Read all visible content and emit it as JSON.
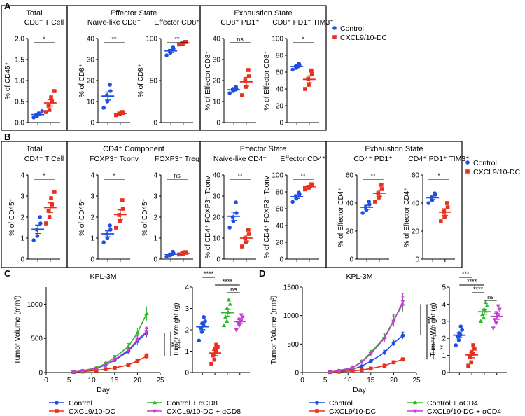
{
  "colors": {
    "control": "#1f4fe0",
    "cxcl": "#e8301e",
    "ctrl_cd": "#2bb82b",
    "cxcl_cd": "#c43dd6",
    "panel_border": "#000000"
  },
  "legend_AB": [
    {
      "label": "Control",
      "marker": "circle",
      "color": "#1f4fe0"
    },
    {
      "label": "CXCL9/10-DC",
      "marker": "square",
      "color": "#e8301e"
    }
  ],
  "chart_data": [
    {
      "id": "A1",
      "panel_letter": "A",
      "type": "scatter",
      "group": "Total",
      "title": "CD8⁺ T Cell",
      "ylabel": "% of CD45⁺",
      "ylim": [
        0,
        2.0
      ],
      "yticks": [
        0.0,
        0.5,
        1.0,
        1.5,
        2.0
      ],
      "sig": "*",
      "series": [
        {
          "name": "Control",
          "values": [
            0.12,
            0.15,
            0.18,
            0.2,
            0.22,
            0.27
          ]
        },
        {
          "name": "CXCL9/10-DC",
          "values": [
            0.25,
            0.3,
            0.4,
            0.5,
            0.6,
            0.75
          ]
        }
      ]
    },
    {
      "id": "A2",
      "type": "scatter",
      "group": "Effector State",
      "title": "Naïve-like CD8⁺",
      "ylabel": "% of CD8⁺",
      "ylim": [
        0,
        40
      ],
      "yticks": [
        0,
        10,
        20,
        30,
        40
      ],
      "sig": "**",
      "series": [
        {
          "name": "Control",
          "values": [
            7,
            10,
            13,
            15,
            18
          ]
        },
        {
          "name": "CXCL9/10-DC",
          "values": [
            3.5,
            4,
            4.3,
            4.6,
            5
          ]
        }
      ]
    },
    {
      "id": "A3",
      "type": "scatter",
      "title": "Effector CD8⁺",
      "ylabel": "% of CD8⁺",
      "ylim": [
        0,
        100
      ],
      "yticks": [
        0,
        50,
        100
      ],
      "sig": "**",
      "series": [
        {
          "name": "Control",
          "values": [
            80,
            83,
            85,
            88,
            90
          ]
        },
        {
          "name": "CXCL9/10-DC",
          "values": [
            93,
            94,
            95,
            96,
            96
          ]
        }
      ]
    },
    {
      "id": "A4",
      "type": "scatter",
      "group": "Exhaustion State",
      "title": "CD8⁺ PD1⁺",
      "ylabel": "% of Effector CD8⁺",
      "ylim": [
        0,
        40
      ],
      "yticks": [
        0,
        10,
        20,
        30,
        40
      ],
      "sig": "ns",
      "series": [
        {
          "name": "Control",
          "values": [
            14,
            15,
            16,
            16,
            17
          ]
        },
        {
          "name": "CXCL9/10-DC",
          "values": [
            13,
            17,
            20,
            22,
            25
          ]
        }
      ]
    },
    {
      "id": "A5",
      "type": "scatter",
      "title": "CD8⁺ PD1⁺ TIM3⁺",
      "ylabel": "% of Effector CD8⁺",
      "ylim": [
        0,
        100
      ],
      "yticks": [
        0,
        20,
        40,
        60,
        80,
        100
      ],
      "sig": "*",
      "series": [
        {
          "name": "Control",
          "values": [
            63,
            65,
            67,
            68,
            70
          ]
        },
        {
          "name": "CXCL9/10-DC",
          "values": [
            40,
            45,
            52,
            58,
            62
          ]
        }
      ]
    },
    {
      "id": "B1",
      "panel_letter": "B",
      "type": "scatter",
      "group": "Total",
      "title": "CD4⁺ T Cell",
      "ylabel": "% of CD45⁺",
      "ylim": [
        0,
        4
      ],
      "yticks": [
        0,
        1,
        2,
        3,
        4
      ],
      "sig": "*",
      "series": [
        {
          "name": "Control",
          "values": [
            0.9,
            1.1,
            1.4,
            1.7,
            2.0
          ]
        },
        {
          "name": "CXCL9/10-DC",
          "values": [
            1.7,
            2.0,
            2.3,
            2.6,
            2.9,
            3.2
          ]
        }
      ]
    },
    {
      "id": "B2",
      "type": "scatter",
      "group": "CD4⁺ Component",
      "title": "FOXP3⁻ Tconv",
      "ylabel": "% of CD45⁺",
      "ylim": [
        0,
        4
      ],
      "yticks": [
        0,
        1,
        2,
        3,
        4
      ],
      "sig": "*",
      "series": [
        {
          "name": "Control",
          "values": [
            0.8,
            1.0,
            1.2,
            1.4,
            1.6
          ]
        },
        {
          "name": "CXCL9/10-DC",
          "values": [
            1.5,
            1.8,
            2.1,
            2.4,
            2.8
          ]
        }
      ]
    },
    {
      "id": "B3",
      "type": "scatter",
      "title": "FOXP3⁺ Treg",
      "ylabel": "% of CD45⁺",
      "ylim": [
        0,
        4
      ],
      "yticks": [
        0,
        1,
        2,
        3,
        4
      ],
      "sig": "ns",
      "series": [
        {
          "name": "Control",
          "values": [
            0.12,
            0.18,
            0.22,
            0.28,
            0.35
          ]
        },
        {
          "name": "CXCL9/10-DC",
          "values": [
            0.22,
            0.25,
            0.28,
            0.3,
            0.33
          ]
        }
      ]
    },
    {
      "id": "B4",
      "type": "scatter",
      "group": "Effector State",
      "title": "Naïve-like CD4⁺",
      "ylabel": "% of CD4⁺ FOXP3⁻ Tconv",
      "ylim": [
        0,
        40
      ],
      "yticks": [
        0,
        10,
        20,
        30,
        40
      ],
      "sig": "**",
      "series": [
        {
          "name": "Control",
          "values": [
            15,
            18,
            20,
            22,
            27
          ]
        },
        {
          "name": "CXCL9/10-DC",
          "values": [
            6,
            8,
            10,
            12,
            14
          ]
        }
      ]
    },
    {
      "id": "B5",
      "type": "scatter",
      "title": "Effector CD4⁺",
      "ylabel": "% of CD4⁺ FOXP3⁻ Tconv",
      "ylim": [
        0,
        100
      ],
      "yticks": [
        0,
        20,
        40,
        60,
        80,
        100
      ],
      "sig": "**",
      "series": [
        {
          "name": "Control",
          "values": [
            68,
            72,
            75,
            77,
            79
          ]
        },
        {
          "name": "CXCL9/10-DC",
          "values": [
            83,
            85,
            86,
            88,
            89
          ]
        }
      ]
    },
    {
      "id": "B6",
      "type": "scatter",
      "group": "Exhaustion State",
      "title": "CD4⁺ PD1⁺",
      "ylabel": "% of Effector CD4⁺",
      "ylim": [
        0,
        60
      ],
      "yticks": [
        0,
        20,
        40,
        60
      ],
      "sig": "**",
      "series": [
        {
          "name": "Control",
          "values": [
            33,
            35,
            37,
            39,
            41
          ]
        },
        {
          "name": "CXCL9/10-DC",
          "values": [
            41,
            44,
            47,
            50,
            53
          ]
        }
      ]
    },
    {
      "id": "B7",
      "type": "scatter",
      "title": "CD4⁺ PD1⁺ TIM3⁺",
      "ylabel": "% of Effector CD4⁺",
      "ylim": [
        0,
        60
      ],
      "yticks": [
        0,
        20,
        40,
        60
      ],
      "sig": "*",
      "series": [
        {
          "name": "Control",
          "values": [
            40,
            42,
            44,
            46,
            47
          ]
        },
        {
          "name": "CXCL9/10-DC",
          "values": [
            27,
            30,
            34,
            37,
            40
          ]
        }
      ]
    },
    {
      "id": "C_growth",
      "panel_letter": "C",
      "type": "line",
      "title": "KPL-3M",
      "xlabel": "Day",
      "ylabel": "Tumor Volume (mm³)",
      "xlim": [
        0,
        25
      ],
      "ylim": [
        0,
        1250
      ],
      "xticks": [
        0,
        5,
        10,
        15,
        20,
        25
      ],
      "yticks": [
        0,
        500,
        1000
      ],
      "x": [
        6,
        8,
        11,
        13,
        15,
        18,
        20,
        22
      ],
      "series": [
        {
          "name": "Control",
          "color": "#1f4fe0",
          "values": [
            10,
            25,
            60,
            110,
            180,
            310,
            460,
            580
          ],
          "err": [
            3,
            6,
            12,
            18,
            25,
            40,
            50,
            60
          ]
        },
        {
          "name": "CXCL9/10-DC",
          "color": "#e8301e",
          "values": [
            8,
            15,
            30,
            50,
            70,
            110,
            170,
            240
          ],
          "err": [
            2,
            4,
            7,
            10,
            12,
            18,
            25,
            35
          ]
        },
        {
          "name": "Control + αCD8",
          "color": "#2bb82b",
          "values": [
            10,
            28,
            70,
            130,
            220,
            380,
            580,
            860
          ],
          "err": [
            3,
            7,
            14,
            22,
            30,
            45,
            70,
            100
          ]
        },
        {
          "name": "CXCL9/10-DC + αCD8",
          "color": "#c43dd6",
          "values": [
            9,
            25,
            60,
            115,
            190,
            330,
            480,
            600
          ],
          "err": [
            3,
            6,
            13,
            20,
            28,
            40,
            55,
            65
          ]
        }
      ],
      "sig": [
        {
          "label": "**"
        },
        {
          "label": "****"
        }
      ]
    },
    {
      "id": "C_weight",
      "type": "scatter",
      "ylabel": "Tumor Weight (g)",
      "ylim": [
        0,
        4
      ],
      "yticks": [
        0,
        1,
        2,
        3,
        4
      ],
      "series": [
        {
          "name": "Control",
          "values": [
            1.5,
            1.9,
            2.1,
            2.2,
            2.3,
            2.4,
            2.6
          ]
        },
        {
          "name": "CXCL9/10-DC",
          "values": [
            0.4,
            0.6,
            0.8,
            1.0,
            1.1,
            1.2,
            1.3
          ]
        },
        {
          "name": "Control + αCD8",
          "values": [
            2.2,
            2.4,
            2.6,
            2.8,
            3.0,
            3.2,
            3.4
          ]
        },
        {
          "name": "CXCL9/10-DC + αCD8",
          "values": [
            2.0,
            2.2,
            2.3,
            2.4,
            2.5,
            2.6,
            2.7
          ]
        }
      ],
      "brackets": [
        {
          "from": 0,
          "to": 1,
          "label": "****"
        },
        {
          "from": 1,
          "to": 3,
          "label": "****"
        },
        {
          "from": 2,
          "to": 3,
          "label": "ns"
        }
      ]
    },
    {
      "id": "D_growth",
      "panel_letter": "D",
      "type": "line",
      "title": "KPL-3M",
      "xlabel": "Day",
      "ylabel": "Tumor Volume (mm³)",
      "xlim": [
        0,
        25
      ],
      "ylim": [
        0,
        1500
      ],
      "xticks": [
        0,
        5,
        10,
        15,
        20,
        25
      ],
      "yticks": [
        0,
        500,
        1000,
        1500
      ],
      "x": [
        6,
        8,
        11,
        13,
        15,
        18,
        20,
        22
      ],
      "series": [
        {
          "name": "Control",
          "color": "#1f4fe0",
          "values": [
            10,
            25,
            60,
            110,
            200,
            350,
            520,
            650
          ],
          "err": [
            3,
            6,
            12,
            18,
            28,
            40,
            55,
            60
          ]
        },
        {
          "name": "CXCL9/10-DC",
          "color": "#e8301e",
          "values": [
            8,
            14,
            28,
            45,
            70,
            120,
            180,
            230
          ],
          "err": [
            2,
            4,
            6,
            9,
            12,
            18,
            25,
            30
          ]
        },
        {
          "name": "Control + αCD4",
          "color": "#2bb82b",
          "values": [
            12,
            35,
            90,
            190,
            350,
            620,
            920,
            1200
          ],
          "err": [
            3,
            8,
            16,
            28,
            40,
            70,
            100,
            130
          ]
        },
        {
          "name": "CXCL9/10-DC + αCD4",
          "color": "#c43dd6",
          "values": [
            12,
            33,
            85,
            180,
            330,
            600,
            900,
            1250
          ],
          "err": [
            3,
            8,
            16,
            27,
            40,
            65,
            95,
            140
          ]
        }
      ],
      "sig": [
        {
          "label": "***"
        },
        {
          "label": "****"
        },
        {
          "label": "**"
        }
      ]
    },
    {
      "id": "D_weight",
      "type": "scatter",
      "ylabel": "Tumor Weight (g)",
      "ylim": [
        0,
        5
      ],
      "yticks": [
        0,
        1,
        2,
        3,
        4,
        5
      ],
      "series": [
        {
          "name": "Control",
          "values": [
            1.6,
            1.9,
            2.1,
            2.2,
            2.3,
            2.5,
            2.7
          ]
        },
        {
          "name": "CXCL9/10-DC",
          "values": [
            0.4,
            0.6,
            0.9,
            1.1,
            1.2,
            1.4,
            1.6
          ]
        },
        {
          "name": "Control + αCD4",
          "values": [
            3.0,
            3.2,
            3.4,
            3.6,
            3.7,
            3.9,
            4.1
          ]
        },
        {
          "name": "CXCL9/10-DC + αCD4",
          "values": [
            2.6,
            2.9,
            3.1,
            3.3,
            3.5,
            3.7,
            3.9
          ]
        }
      ],
      "brackets": [
        {
          "from": 0,
          "to": 1,
          "label": "***"
        },
        {
          "from": 0,
          "to": 2,
          "label": "****"
        },
        {
          "from": 1,
          "to": 2,
          "label": "****"
        },
        {
          "from": 2,
          "to": 3,
          "label": "ns"
        }
      ]
    }
  ]
}
